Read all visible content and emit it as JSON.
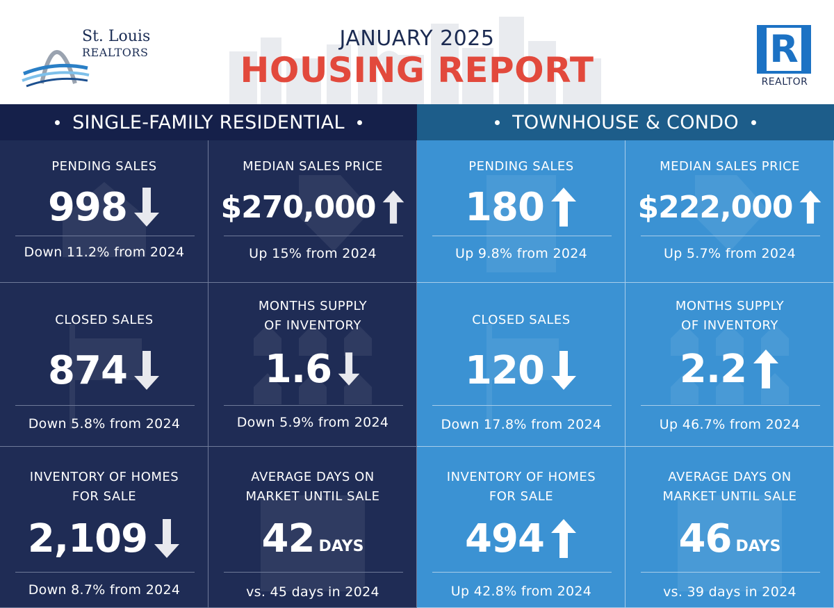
{
  "header": {
    "brand_name": "St. Louis",
    "brand_sub": "REALTORS",
    "title_sub": "JANUARY 2025",
    "title_main": "HOUSING REPORT",
    "realtor_letter": "R",
    "realtor_label": "REALTOR"
  },
  "colors": {
    "title_red": "#e2493c",
    "navy": "#1f2c55",
    "blue": "#3b92d3"
  },
  "sections": {
    "left_title": "SINGLE-FAMILY RESIDENTIAL",
    "right_title": "TOWNHOUSE & CONDO"
  },
  "single_family": {
    "pending": {
      "label": "PENDING SALES",
      "value": "998",
      "trend": "down",
      "change": "Down 11.2% from 2024"
    },
    "median_price": {
      "label": "MEDIAN SALES PRICE",
      "value": "$270,000",
      "trend": "up",
      "change": "Up 15% from 2024"
    },
    "closed": {
      "label": "CLOSED SALES",
      "value": "874",
      "trend": "down",
      "change": "Down 5.8% from 2024"
    },
    "months_supply": {
      "label_1": "MONTHS SUPPLY",
      "label_2": "OF INVENTORY",
      "value": "1.6",
      "trend": "down",
      "change": "Down 5.9% from 2024"
    },
    "inventory": {
      "label_1": "INVENTORY OF HOMES",
      "label_2": "FOR SALE",
      "value": "2,109",
      "trend": "down",
      "change": "Down 8.7% from 2024"
    },
    "days_on_market": {
      "label_1": "AVERAGE DAYS ON",
      "label_2": "MARKET UNTIL SALE",
      "value": "42",
      "unit": "DAYS",
      "change": "vs. 45 days in 2024"
    }
  },
  "townhouse_condo": {
    "pending": {
      "label": "PENDING SALES",
      "value": "180",
      "trend": "up",
      "change": "Up 9.8% from 2024"
    },
    "median_price": {
      "label": "MEDIAN SALES PRICE",
      "value": "$222,000",
      "trend": "up",
      "change": "Up 5.7% from 2024"
    },
    "closed": {
      "label": "CLOSED SALES",
      "value": "120",
      "trend": "down",
      "change": "Down 17.8% from 2024"
    },
    "months_supply": {
      "label_1": "MONTHS SUPPLY",
      "label_2": "OF INVENTORY",
      "value": "2.2",
      "trend": "up",
      "change": "Up 46.7% from 2024"
    },
    "inventory": {
      "label_1": "INVENTORY OF HOMES",
      "label_2": "FOR SALE",
      "value": "494",
      "trend": "up",
      "change": "Up 42.8% from 2024"
    },
    "days_on_market": {
      "label_1": "AVERAGE DAYS ON",
      "label_2": "MARKET UNTIL SALE",
      "value": "46",
      "unit": "DAYS",
      "change": "vs. 39 days in 2024"
    }
  }
}
